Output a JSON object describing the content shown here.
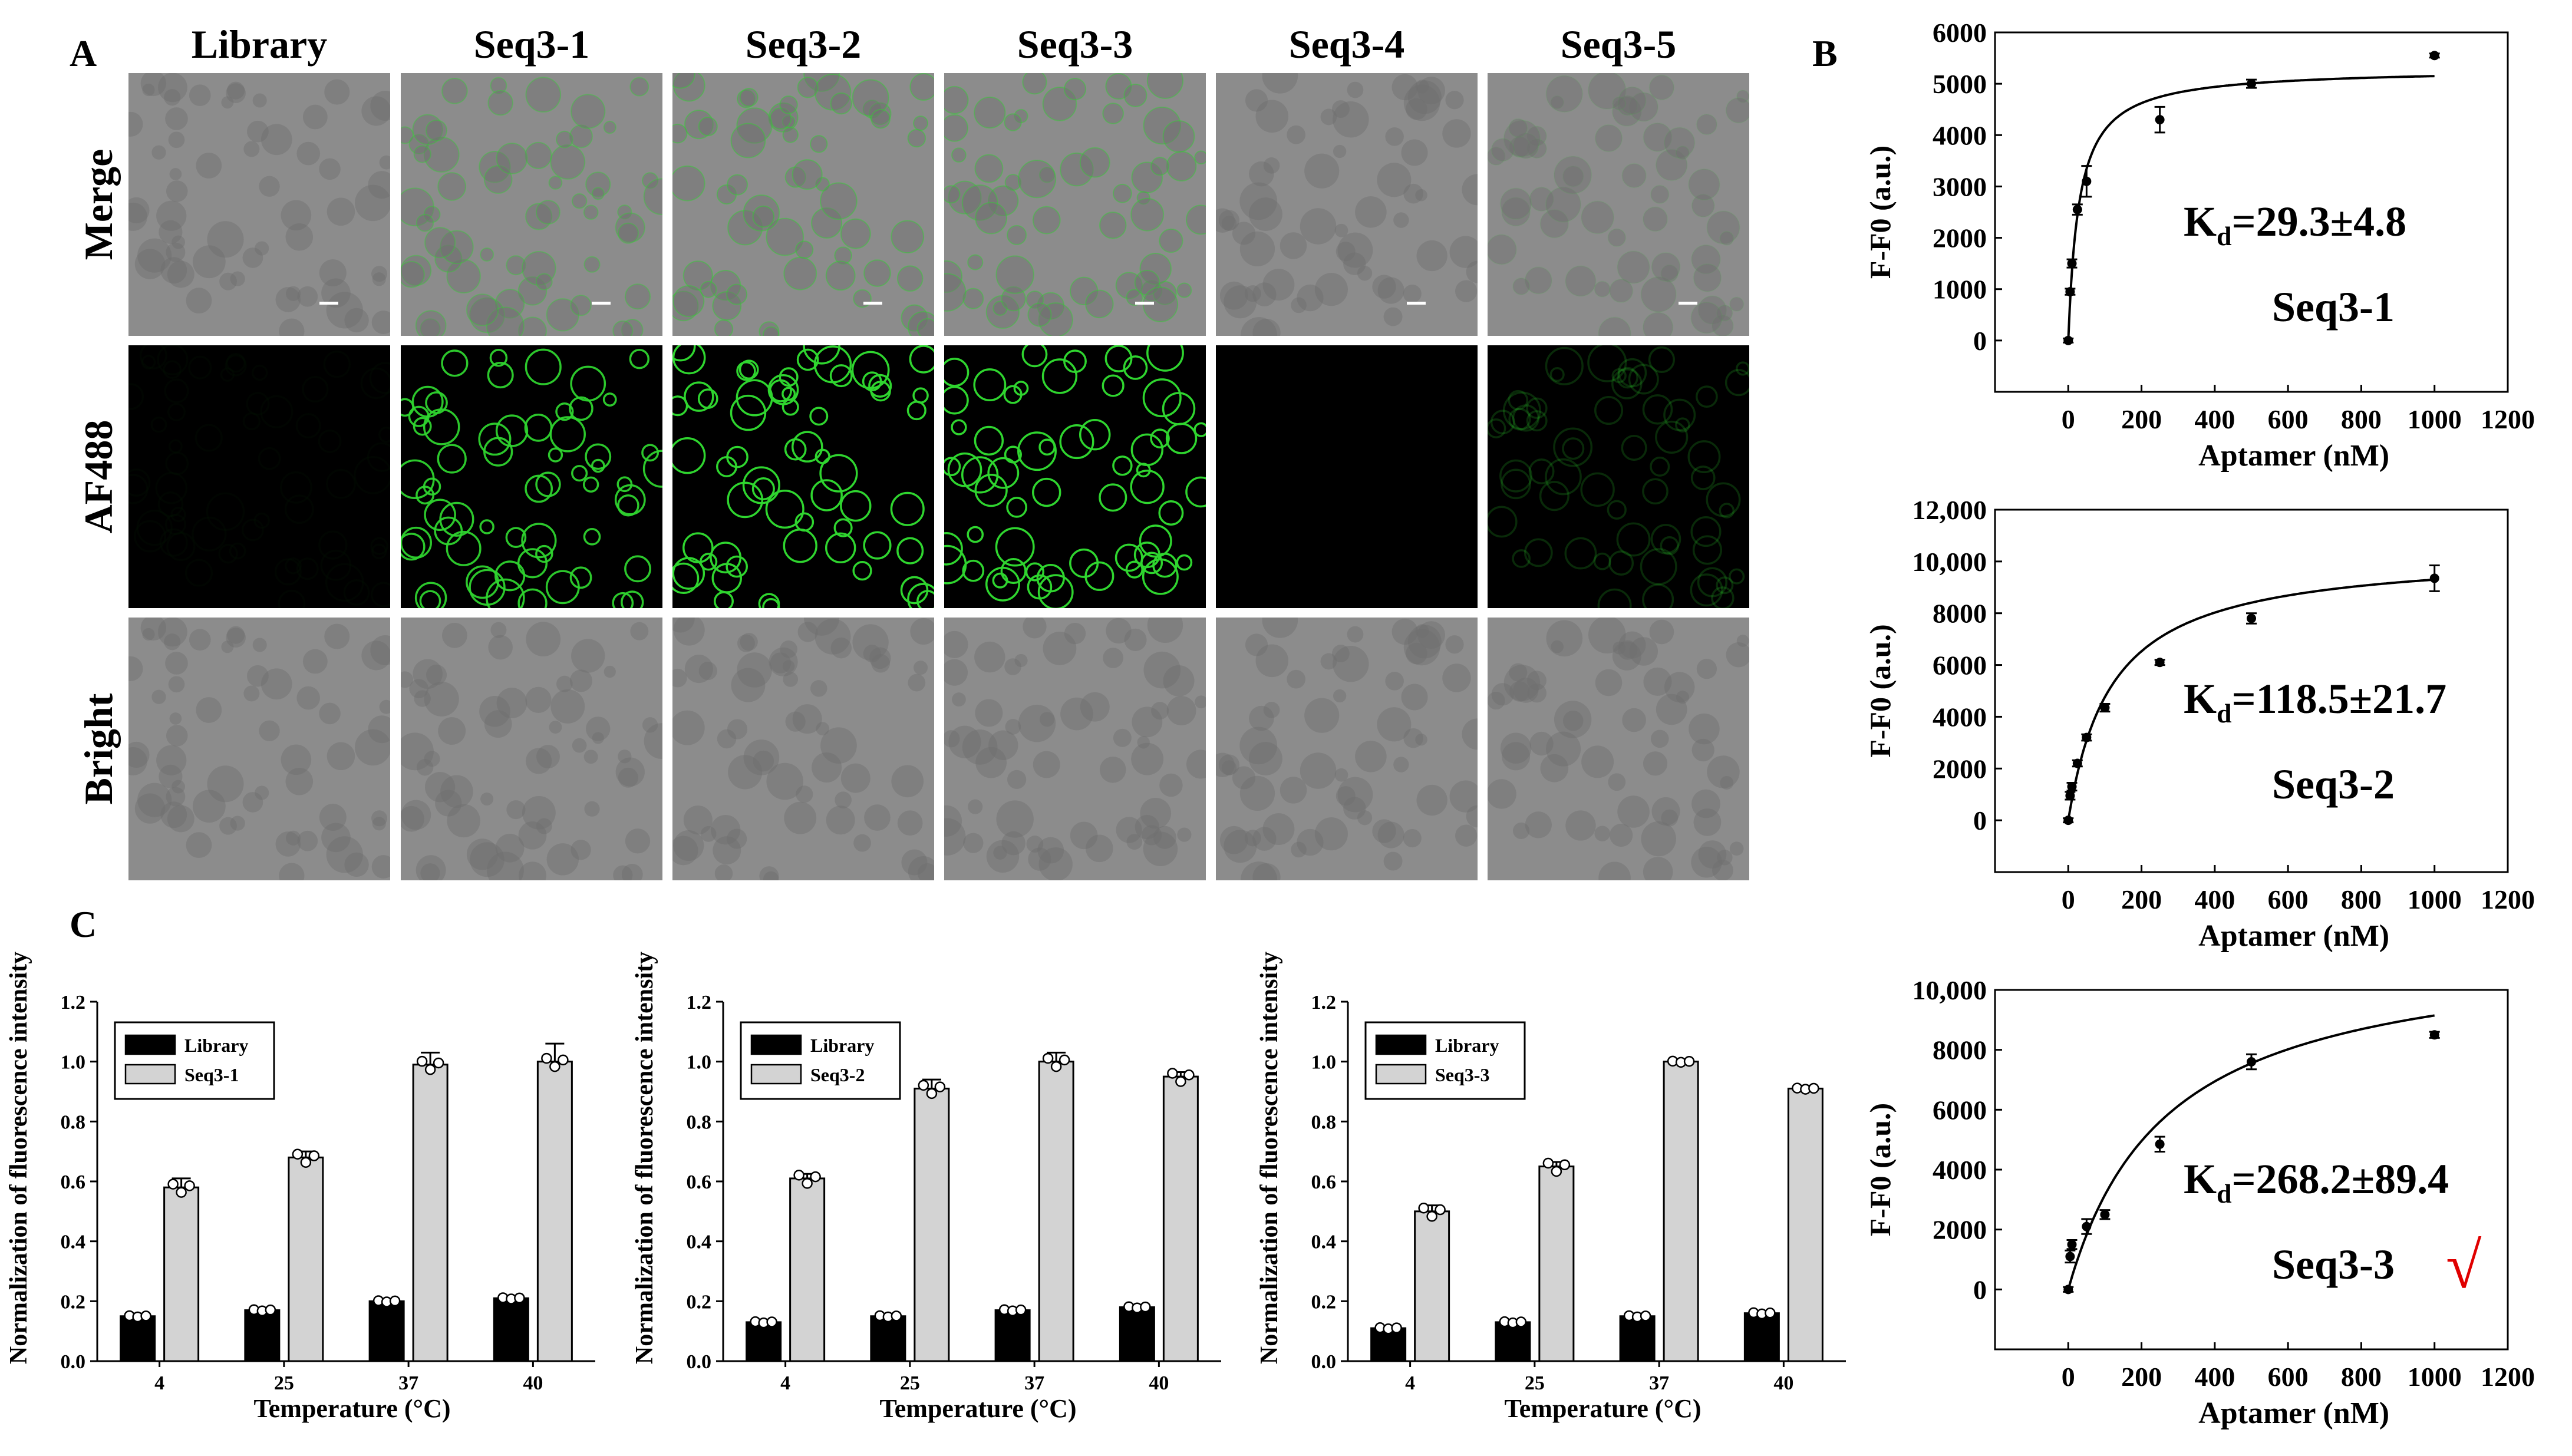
{
  "panels": {
    "a": "A",
    "b": "B",
    "c": "C"
  },
  "panel_a": {
    "columns": [
      "Library",
      "Seq3-1",
      "Seq3-2",
      "Seq3-3",
      "Seq3-4",
      "Seq3-5"
    ],
    "rows": [
      "Merge",
      "AF488",
      "Bright"
    ],
    "fluorescence_level": [
      0.02,
      0.85,
      1.0,
      0.95,
      0.0,
      0.18
    ],
    "colors": {
      "bright_bg": "#8c8c8c",
      "cell_shade": "#6f6f6f",
      "green": "#2fd52f",
      "black": "#000000"
    }
  },
  "chart_data": [
    {
      "id": "B1",
      "type": "scatter",
      "xlabel": "Aptamer (nM)",
      "ylabel": "F-F0 (a.u.)",
      "xlim": [
        -200,
        1200
      ],
      "ylim": [
        -1000,
        6000
      ],
      "x_ticks": [
        "0",
        "200",
        "400",
        "600",
        "800",
        "1000",
        "1200"
      ],
      "y_ticks": [
        "0",
        "1000",
        "2000",
        "3000",
        "4000",
        "5000",
        "6000"
      ],
      "points": [
        {
          "x": 0,
          "y": 0,
          "err": 40
        },
        {
          "x": 5,
          "y": 950,
          "err": 60
        },
        {
          "x": 10,
          "y": 1500,
          "err": 80
        },
        {
          "x": 25,
          "y": 2550,
          "err": 100
        },
        {
          "x": 50,
          "y": 3100,
          "err": 300
        },
        {
          "x": 250,
          "y": 4300,
          "err": 250
        },
        {
          "x": 500,
          "y": 5000,
          "err": 80
        },
        {
          "x": 1000,
          "y": 5550,
          "err": 40
        }
      ],
      "fit": {
        "model": "one-site",
        "bmax": 5300,
        "kd": 29.3
      },
      "kd_label": {
        "prefix": "K",
        "sub": "d",
        "value": "=29.3±4.8"
      },
      "seq_label": "Seq3-1",
      "check": ""
    },
    {
      "id": "B2",
      "type": "scatter",
      "xlabel": "Aptamer (nM)",
      "ylabel": "F-F0 (a.u.)",
      "xlim": [
        -200,
        1200
      ],
      "ylim": [
        -2000,
        12000
      ],
      "x_ticks": [
        "0",
        "200",
        "400",
        "600",
        "800",
        "1000",
        "1200"
      ],
      "y_ticks": [
        "0",
        "2000",
        "4000",
        "6000",
        "8000",
        "10,000",
        "12,000"
      ],
      "points": [
        {
          "x": 0,
          "y": 0,
          "err": 80
        },
        {
          "x": 5,
          "y": 950,
          "err": 150
        },
        {
          "x": 10,
          "y": 1300,
          "err": 150
        },
        {
          "x": 25,
          "y": 2200,
          "err": 120
        },
        {
          "x": 50,
          "y": 3200,
          "err": 120
        },
        {
          "x": 100,
          "y": 4350,
          "err": 150
        },
        {
          "x": 250,
          "y": 6100,
          "err": 100
        },
        {
          "x": 500,
          "y": 7800,
          "err": 200
        },
        {
          "x": 1000,
          "y": 9350,
          "err": 500
        }
      ],
      "fit": {
        "model": "one-site",
        "bmax": 10400,
        "kd": 118.5
      },
      "kd_label": {
        "prefix": "K",
        "sub": "d",
        "value": "=118.5±21.7"
      },
      "seq_label": "Seq3-2",
      "check": ""
    },
    {
      "id": "B3",
      "type": "scatter",
      "xlabel": "Aptamer (nM)",
      "ylabel": "F-F0 (a.u.)",
      "xlim": [
        -200,
        1200
      ],
      "ylim": [
        -2000,
        10000
      ],
      "x_ticks": [
        "0",
        "200",
        "400",
        "600",
        "800",
        "1000",
        "1200"
      ],
      "y_ticks": [
        "0",
        "2000",
        "4000",
        "6000",
        "8000",
        "10,000"
      ],
      "points": [
        {
          "x": 0,
          "y": 0,
          "err": 80
        },
        {
          "x": 5,
          "y": 1100,
          "err": 200
        },
        {
          "x": 10,
          "y": 1500,
          "err": 150
        },
        {
          "x": 50,
          "y": 2100,
          "err": 250
        },
        {
          "x": 100,
          "y": 2500,
          "err": 150
        },
        {
          "x": 250,
          "y": 4850,
          "err": 250
        },
        {
          "x": 500,
          "y": 7600,
          "err": 250
        },
        {
          "x": 1000,
          "y": 8500,
          "err": 100
        }
      ],
      "fit": {
        "model": "one-site",
        "bmax": 11600,
        "kd": 268.2
      },
      "kd_label": {
        "prefix": "K",
        "sub": "d",
        "value": "=268.2±89.4"
      },
      "seq_label": "Seq3-3",
      "check": "√"
    },
    {
      "id": "C1",
      "type": "bar",
      "ylabel": "Normalization of fluorescence intensity",
      "xlabel": "Temperature (°C)",
      "categories": [
        "4",
        "25",
        "37",
        "40"
      ],
      "ylim": [
        0,
        1.2
      ],
      "y_ticks": [
        "0.0",
        "0.2",
        "0.4",
        "0.6",
        "0.8",
        "1.0",
        "1.2"
      ],
      "series": [
        {
          "name": "Library",
          "color": "#000000",
          "values": [
            0.15,
            0.17,
            0.2,
            0.21
          ],
          "err": [
            0.005,
            0.005,
            0.005,
            0.005
          ]
        },
        {
          "name": "Seq3-1",
          "color": "#d3d3d3",
          "values": [
            0.58,
            0.68,
            0.99,
            1.0
          ],
          "err": [
            0.03,
            0.02,
            0.04,
            0.06
          ]
        }
      ],
      "legend": "top-left"
    },
    {
      "id": "C2",
      "type": "bar",
      "ylabel": "Normalization of fluorescence intensity",
      "xlabel": "Temperature (°C)",
      "categories": [
        "4",
        "25",
        "37",
        "40"
      ],
      "ylim": [
        0,
        1.2
      ],
      "y_ticks": [
        "0.0",
        "0.2",
        "0.4",
        "0.6",
        "0.8",
        "1.0",
        "1.2"
      ],
      "series": [
        {
          "name": "Library",
          "color": "#000000",
          "values": [
            0.13,
            0.15,
            0.17,
            0.18
          ],
          "err": [
            0.005,
            0.005,
            0.005,
            0.005
          ]
        },
        {
          "name": "Seq3-2",
          "color": "#d3d3d3",
          "values": [
            0.61,
            0.91,
            1.0,
            0.95
          ],
          "err": [
            0.015,
            0.03,
            0.03,
            0.015
          ]
        }
      ],
      "legend": "top-left"
    },
    {
      "id": "C3",
      "type": "bar",
      "ylabel": "Normalization of fluorescence intensity",
      "xlabel": "Temperature (°C)",
      "categories": [
        "4",
        "25",
        "37",
        "40"
      ],
      "ylim": [
        0,
        1.2
      ],
      "y_ticks": [
        "0.0",
        "0.2",
        "0.4",
        "0.6",
        "0.8",
        "1.0",
        "1.2"
      ],
      "series": [
        {
          "name": "Library",
          "color": "#000000",
          "values": [
            0.11,
            0.13,
            0.15,
            0.16
          ],
          "err": [
            0.005,
            0.005,
            0.005,
            0.005
          ]
        },
        {
          "name": "Seq3-3",
          "color": "#d3d3d3",
          "values": [
            0.5,
            0.65,
            1.0,
            0.91
          ],
          "err": [
            0.02,
            0.015,
            0.005,
            0.01
          ]
        }
      ],
      "legend": "top-left"
    }
  ]
}
